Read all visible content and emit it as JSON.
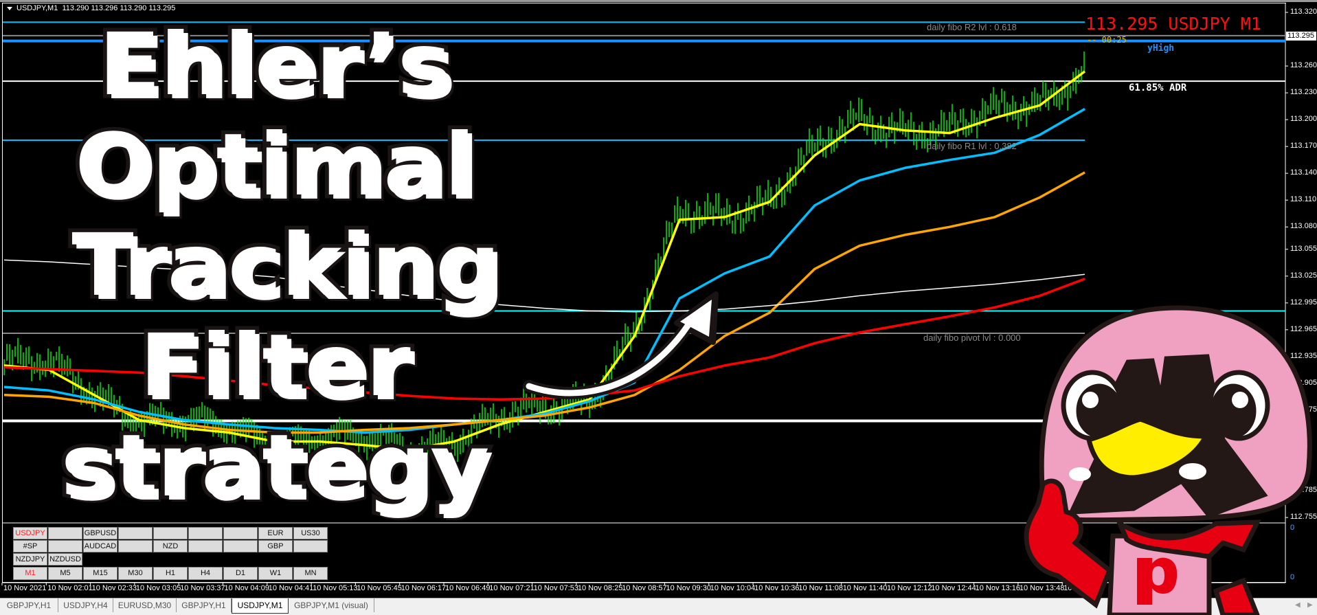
{
  "header": {
    "symbol": "USDJPY,M1",
    "ohlc": "113.290 113.296 113.290 113.295"
  },
  "price_axis": [
    "113.320",
    "113.260",
    "113.230",
    "113.200",
    "113.170",
    "113.140",
    "113.110",
    "113.080",
    "113.055",
    "113.025",
    "112.995",
    "112.965",
    "112.935",
    "112.905",
    "112.875",
    "112.785",
    "112.755"
  ],
  "price_axis_values": [
    113.32,
    113.26,
    113.23,
    113.2,
    113.17,
    113.14,
    113.11,
    113.08,
    113.055,
    113.025,
    112.995,
    112.965,
    112.935,
    112.905,
    112.875,
    112.785,
    112.755
  ],
  "current_price_box": "113.295",
  "subwindow_axis": [
    "0",
    "0"
  ],
  "overlay": {
    "big_price": "113.295 USDJPY M1",
    "timer": "-- 00:25",
    "yhigh": "yHigh",
    "adr": "61.85% ADR",
    "fibo_r2": "daily fibo R2 lvl : 0.618",
    "fibo_r1": "daily fibo R1 lvl : 0.382",
    "fibo_pivot": "daily fibo pivot lvl : 0.000"
  },
  "levels": [
    {
      "price": 113.309,
      "color": "#00bfff",
      "full": false
    },
    {
      "price": 113.294,
      "color": "#8a8a8a",
      "full": true
    },
    {
      "price": 113.288,
      "color": "#1e90ff",
      "full": true,
      "thick": true
    },
    {
      "price": 113.243,
      "color": "#ffffff",
      "full": true
    },
    {
      "price": 113.177,
      "color": "#00bfff",
      "full": false
    },
    {
      "price": 112.986,
      "color": "#00ffff",
      "full": true
    },
    {
      "price": 112.961,
      "color": "#8a8a8a",
      "full": false
    },
    {
      "price": 112.863,
      "color": "#ffffff",
      "full": false,
      "thick": true
    }
  ],
  "chart_data": {
    "type": "line",
    "symbol": "USDJPY",
    "timeframe": "M1",
    "ylim": [
      112.755,
      113.32
    ],
    "series": [
      {
        "color": "#ffff00",
        "values": [
          112.925,
          112.92,
          112.892,
          112.864,
          112.855,
          112.85,
          112.84,
          112.84,
          112.836,
          112.831,
          112.84,
          112.859,
          112.873,
          112.887,
          112.958,
          113.088,
          113.091,
          113.108,
          113.16,
          113.195,
          113.188,
          113.185,
          113.202,
          113.216,
          113.254
        ]
      },
      {
        "color": "#00bfff",
        "values": [
          112.901,
          112.897,
          112.887,
          112.873,
          112.864,
          112.859,
          112.855,
          112.853,
          112.85,
          112.853,
          112.859,
          112.864,
          112.871,
          112.885,
          112.906,
          113.0,
          113.028,
          113.047,
          113.104,
          113.132,
          113.146,
          113.155,
          113.163,
          113.183,
          113.212
        ]
      },
      {
        "color": "#ffa500",
        "values": [
          112.892,
          112.89,
          112.883,
          112.869,
          112.859,
          112.853,
          112.85,
          112.85,
          112.853,
          112.855,
          112.859,
          112.864,
          112.869,
          112.878,
          112.892,
          112.92,
          112.958,
          112.984,
          113.033,
          113.059,
          113.071,
          113.08,
          113.091,
          113.113,
          113.141
        ]
      },
      {
        "color": "#ff0000",
        "values": [
          112.923,
          112.921,
          112.919,
          112.917,
          112.913,
          112.908,
          112.903,
          112.899,
          112.895,
          112.891,
          112.888,
          112.887,
          112.888,
          112.892,
          112.897,
          112.913,
          112.925,
          112.934,
          112.95,
          112.962,
          112.971,
          112.98,
          112.99,
          113.003,
          113.022
        ]
      },
      {
        "color": "#ffffff",
        "values": [
          113.043,
          113.041,
          113.038,
          113.035,
          113.032,
          113.028,
          113.024,
          113.016,
          113.01,
          113.003,
          112.997,
          112.993,
          112.989,
          112.986,
          112.985,
          112.986,
          112.988,
          112.992,
          112.997,
          113.003,
          113.008,
          113.012,
          113.016,
          113.021,
          113.027
        ]
      }
    ],
    "bar_color": "#00ff00"
  },
  "time_axis": [
    "10 Nov 2021",
    "10 Nov 02:01",
    "10 Nov 02:33",
    "10 Nov 03:05",
    "10 Nov 03:37",
    "10 Nov 04:09",
    "10 Nov 04:41",
    "10 Nov 05:13",
    "10 Nov 05:45",
    "10 Nov 06:17",
    "10 Nov 06:49",
    "10 Nov 07:21",
    "10 Nov 07:53",
    "10 Nov 08:25",
    "10 Nov 08:57",
    "10 Nov 09:30",
    "10 Nov 10:04",
    "10 Nov 10:36",
    "10 Nov 11:08",
    "10 Nov 11:40",
    "10 Nov 12:12",
    "10 Nov 12:44",
    "10 Nov 13:16",
    "10 Nov 13:48",
    "10 Nov"
  ],
  "symbol_panel": {
    "rows": [
      [
        "USDJPY",
        "",
        "GBPUSD",
        "",
        "",
        "",
        "",
        "EUR",
        "US30"
      ],
      [
        "#SP",
        "",
        "AUDCAD",
        "",
        "NZD",
        "",
        "",
        "GBP",
        ""
      ],
      [
        "NZDJPY",
        "NZDUSD"
      ]
    ],
    "active_symbol_color": "#ff2020",
    "timeframes": [
      "M1",
      "M5",
      "M15",
      "M30",
      "H1",
      "H4",
      "D1",
      "W1",
      "MN"
    ],
    "active_timeframe": "M1"
  },
  "tabs": [
    {
      "label": "GBPJPY,H1"
    },
    {
      "label": "USDJPY,H4"
    },
    {
      "label": "EURUSD,M30"
    },
    {
      "label": "GBPJPY,H1"
    },
    {
      "label": "USDJPY,M1",
      "active": true
    },
    {
      "label": "GBPJPY,M1 (visual)"
    }
  ],
  "title_overlay": [
    "Ehler’s",
    "Optimal",
    "Tracking",
    "Filter",
    "strategy"
  ],
  "arrow_icon": "curved-arrow-up-right",
  "mascot": "pink-penguin-mascot",
  "colors": {
    "pink": "#f0a0c0",
    "outline": "#231815",
    "beak": "#ffee00",
    "scarf": "#e60012"
  }
}
